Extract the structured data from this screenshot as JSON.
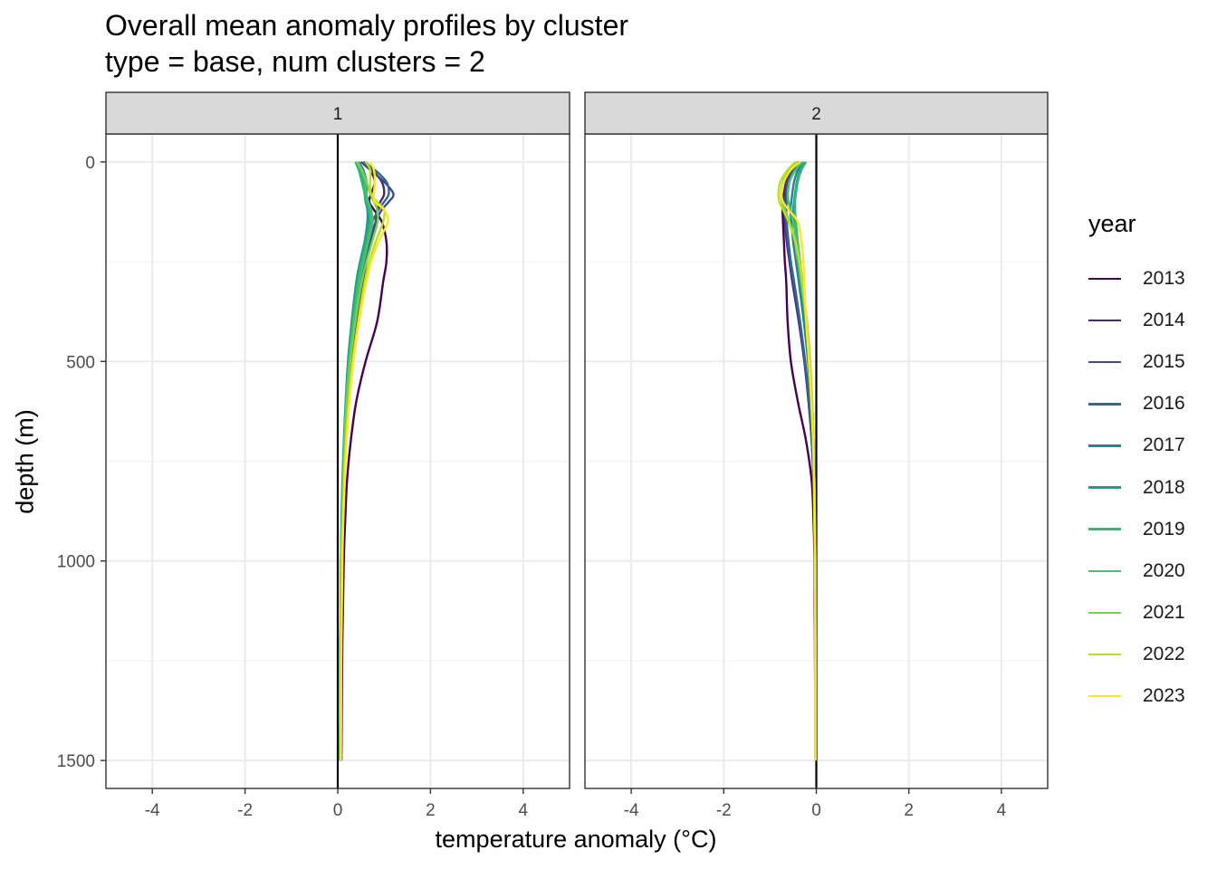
{
  "chart_data": {
    "type": "line",
    "title": "Overall mean anomaly profiles by cluster",
    "subtitle": "type = base, num clusters = 2",
    "xlabel": "temperature anomaly (°C)",
    "ylabel": "depth (m)",
    "xlim": [
      -5,
      5
    ],
    "ylim": [
      1570,
      -70
    ],
    "x_ticks": [
      -4,
      -2,
      0,
      2,
      4
    ],
    "y_ticks": [
      0,
      500,
      1000,
      1500
    ],
    "y_reversed": true,
    "grid": true,
    "legend": {
      "title": "year",
      "position": "right"
    },
    "depths": [
      0,
      20,
      50,
      80,
      100,
      120,
      150,
      200,
      250,
      300,
      400,
      500,
      600,
      700,
      800,
      900,
      1000,
      1200,
      1500
    ],
    "panels": [
      {
        "label": "1",
        "series": [
          {
            "name": "2013",
            "color": "#440154",
            "values": [
              0.55,
              0.7,
              0.8,
              0.72,
              0.68,
              0.78,
              0.95,
              1.05,
              1.05,
              0.98,
              0.85,
              0.6,
              0.4,
              0.28,
              0.2,
              0.16,
              0.13,
              0.1,
              0.08
            ]
          },
          {
            "name": "2014",
            "color": "#482878",
            "values": [
              0.6,
              0.75,
              0.95,
              1.0,
              0.92,
              0.85,
              0.82,
              0.72,
              0.62,
              0.55,
              0.42,
              0.32,
              0.24,
              0.18,
              0.14,
              0.11,
              0.09,
              0.07,
              0.05
            ]
          },
          {
            "name": "2015",
            "color": "#3E4A89",
            "values": [
              0.5,
              0.7,
              1.0,
              1.2,
              1.1,
              0.95,
              0.82,
              0.68,
              0.58,
              0.5,
              0.38,
              0.28,
              0.21,
              0.16,
              0.12,
              0.1,
              0.08,
              0.06,
              0.05
            ]
          },
          {
            "name": "2016",
            "color": "#31688E",
            "values": [
              0.55,
              0.8,
              1.05,
              1.1,
              1.0,
              0.88,
              0.75,
              0.62,
              0.53,
              0.46,
              0.35,
              0.26,
              0.19,
              0.14,
              0.11,
              0.09,
              0.08,
              0.06,
              0.05
            ]
          },
          {
            "name": "2017",
            "color": "#26828E",
            "values": [
              0.45,
              0.55,
              0.62,
              0.62,
              0.62,
              0.64,
              0.64,
              0.58,
              0.5,
              0.43,
              0.33,
              0.24,
              0.18,
              0.14,
              0.11,
              0.09,
              0.07,
              0.06,
              0.05
            ]
          },
          {
            "name": "2018",
            "color": "#1F9E89",
            "values": [
              0.4,
              0.48,
              0.55,
              0.58,
              0.6,
              0.64,
              0.66,
              0.58,
              0.48,
              0.4,
              0.3,
              0.22,
              0.17,
              0.13,
              0.1,
              0.08,
              0.07,
              0.06,
              0.05
            ]
          },
          {
            "name": "2019",
            "color": "#35B779",
            "values": [
              0.38,
              0.45,
              0.52,
              0.58,
              0.62,
              0.68,
              0.7,
              0.62,
              0.52,
              0.44,
              0.33,
              0.24,
              0.18,
              0.14,
              0.11,
              0.09,
              0.07,
              0.06,
              0.05
            ]
          },
          {
            "name": "2020",
            "color": "#4AC16D",
            "values": [
              0.4,
              0.5,
              0.58,
              0.62,
              0.66,
              0.72,
              0.75,
              0.66,
              0.56,
              0.47,
              0.35,
              0.25,
              0.19,
              0.15,
              0.12,
              0.1,
              0.08,
              0.06,
              0.05
            ]
          },
          {
            "name": "2021",
            "color": "#7AD151",
            "values": [
              0.42,
              0.52,
              0.62,
              0.7,
              0.78,
              0.85,
              0.86,
              0.74,
              0.62,
              0.52,
              0.38,
              0.27,
              0.2,
              0.15,
              0.12,
              0.1,
              0.08,
              0.07,
              0.06
            ]
          },
          {
            "name": "2022",
            "color": "#BBDF27",
            "values": [
              0.6,
              0.7,
              0.7,
              0.72,
              0.85,
              1.0,
              0.98,
              0.82,
              0.68,
              0.58,
              0.44,
              0.32,
              0.24,
              0.18,
              0.14,
              0.11,
              0.09,
              0.07,
              0.06
            ]
          },
          {
            "name": "2023",
            "color": "#FDE725",
            "values": [
              0.7,
              0.78,
              0.8,
              0.78,
              0.8,
              1.0,
              1.08,
              0.88,
              0.72,
              0.62,
              0.46,
              0.34,
              0.25,
              0.19,
              0.15,
              0.12,
              0.1,
              0.08,
              0.07
            ]
          }
        ]
      },
      {
        "label": "2",
        "series": [
          {
            "name": "2013",
            "color": "#440154",
            "values": [
              -0.4,
              -0.55,
              -0.65,
              -0.7,
              -0.72,
              -0.73,
              -0.72,
              -0.7,
              -0.68,
              -0.65,
              -0.62,
              -0.55,
              -0.4,
              -0.22,
              -0.1,
              -0.06,
              -0.04,
              -0.03,
              -0.02
            ]
          },
          {
            "name": "2014",
            "color": "#482878",
            "values": [
              -0.4,
              -0.55,
              -0.65,
              -0.68,
              -0.7,
              -0.7,
              -0.68,
              -0.64,
              -0.58,
              -0.52,
              -0.38,
              -0.26,
              -0.17,
              -0.1,
              -0.06,
              -0.04,
              -0.03,
              -0.02,
              -0.02
            ]
          },
          {
            "name": "2015",
            "color": "#3E4A89",
            "values": [
              -0.38,
              -0.52,
              -0.62,
              -0.66,
              -0.68,
              -0.68,
              -0.66,
              -0.62,
              -0.56,
              -0.5,
              -0.36,
              -0.25,
              -0.16,
              -0.1,
              -0.06,
              -0.04,
              -0.03,
              -0.02,
              -0.02
            ]
          },
          {
            "name": "2016",
            "color": "#31688E",
            "values": [
              -0.35,
              -0.48,
              -0.58,
              -0.62,
              -0.64,
              -0.65,
              -0.64,
              -0.6,
              -0.55,
              -0.48,
              -0.35,
              -0.24,
              -0.15,
              -0.09,
              -0.06,
              -0.04,
              -0.03,
              -0.02,
              -0.02
            ]
          },
          {
            "name": "2017",
            "color": "#26828E",
            "values": [
              -0.3,
              -0.4,
              -0.48,
              -0.52,
              -0.54,
              -0.56,
              -0.54,
              -0.5,
              -0.44,
              -0.38,
              -0.27,
              -0.18,
              -0.12,
              -0.08,
              -0.05,
              -0.04,
              -0.03,
              -0.02,
              -0.02
            ]
          },
          {
            "name": "2018",
            "color": "#1F9E89",
            "values": [
              -0.25,
              -0.35,
              -0.42,
              -0.46,
              -0.48,
              -0.5,
              -0.48,
              -0.44,
              -0.39,
              -0.33,
              -0.23,
              -0.16,
              -0.1,
              -0.07,
              -0.05,
              -0.04,
              -0.03,
              -0.02,
              -0.02
            ]
          },
          {
            "name": "2019",
            "color": "#35B779",
            "values": [
              -0.22,
              -0.32,
              -0.4,
              -0.44,
              -0.46,
              -0.46,
              -0.44,
              -0.4,
              -0.35,
              -0.3,
              -0.21,
              -0.14,
              -0.09,
              -0.06,
              -0.04,
              -0.03,
              -0.02,
              -0.02,
              -0.02
            ]
          },
          {
            "name": "2020",
            "color": "#4AC16D",
            "values": [
              -0.3,
              -0.45,
              -0.58,
              -0.62,
              -0.6,
              -0.56,
              -0.5,
              -0.42,
              -0.36,
              -0.3,
              -0.21,
              -0.14,
              -0.09,
              -0.06,
              -0.04,
              -0.03,
              -0.02,
              -0.02,
              -0.02
            ]
          },
          {
            "name": "2021",
            "color": "#7AD151",
            "values": [
              -0.4,
              -0.58,
              -0.72,
              -0.76,
              -0.74,
              -0.68,
              -0.58,
              -0.46,
              -0.38,
              -0.32,
              -0.22,
              -0.15,
              -0.1,
              -0.07,
              -0.05,
              -0.04,
              -0.03,
              -0.02,
              -0.02
            ]
          },
          {
            "name": "2022",
            "color": "#BBDF27",
            "values": [
              -0.45,
              -0.62,
              -0.78,
              -0.82,
              -0.8,
              -0.72,
              -0.6,
              -0.45,
              -0.36,
              -0.3,
              -0.2,
              -0.13,
              -0.09,
              -0.06,
              -0.04,
              -0.03,
              -0.02,
              -0.02,
              -0.02
            ]
          },
          {
            "name": "2023",
            "color": "#FDE725",
            "values": [
              -0.35,
              -0.55,
              -0.7,
              -0.75,
              -0.72,
              -0.6,
              -0.4,
              -0.32,
              -0.28,
              -0.26,
              -0.22,
              -0.16,
              -0.11,
              -0.07,
              -0.05,
              -0.04,
              -0.03,
              -0.02,
              -0.02
            ]
          }
        ]
      }
    ]
  }
}
